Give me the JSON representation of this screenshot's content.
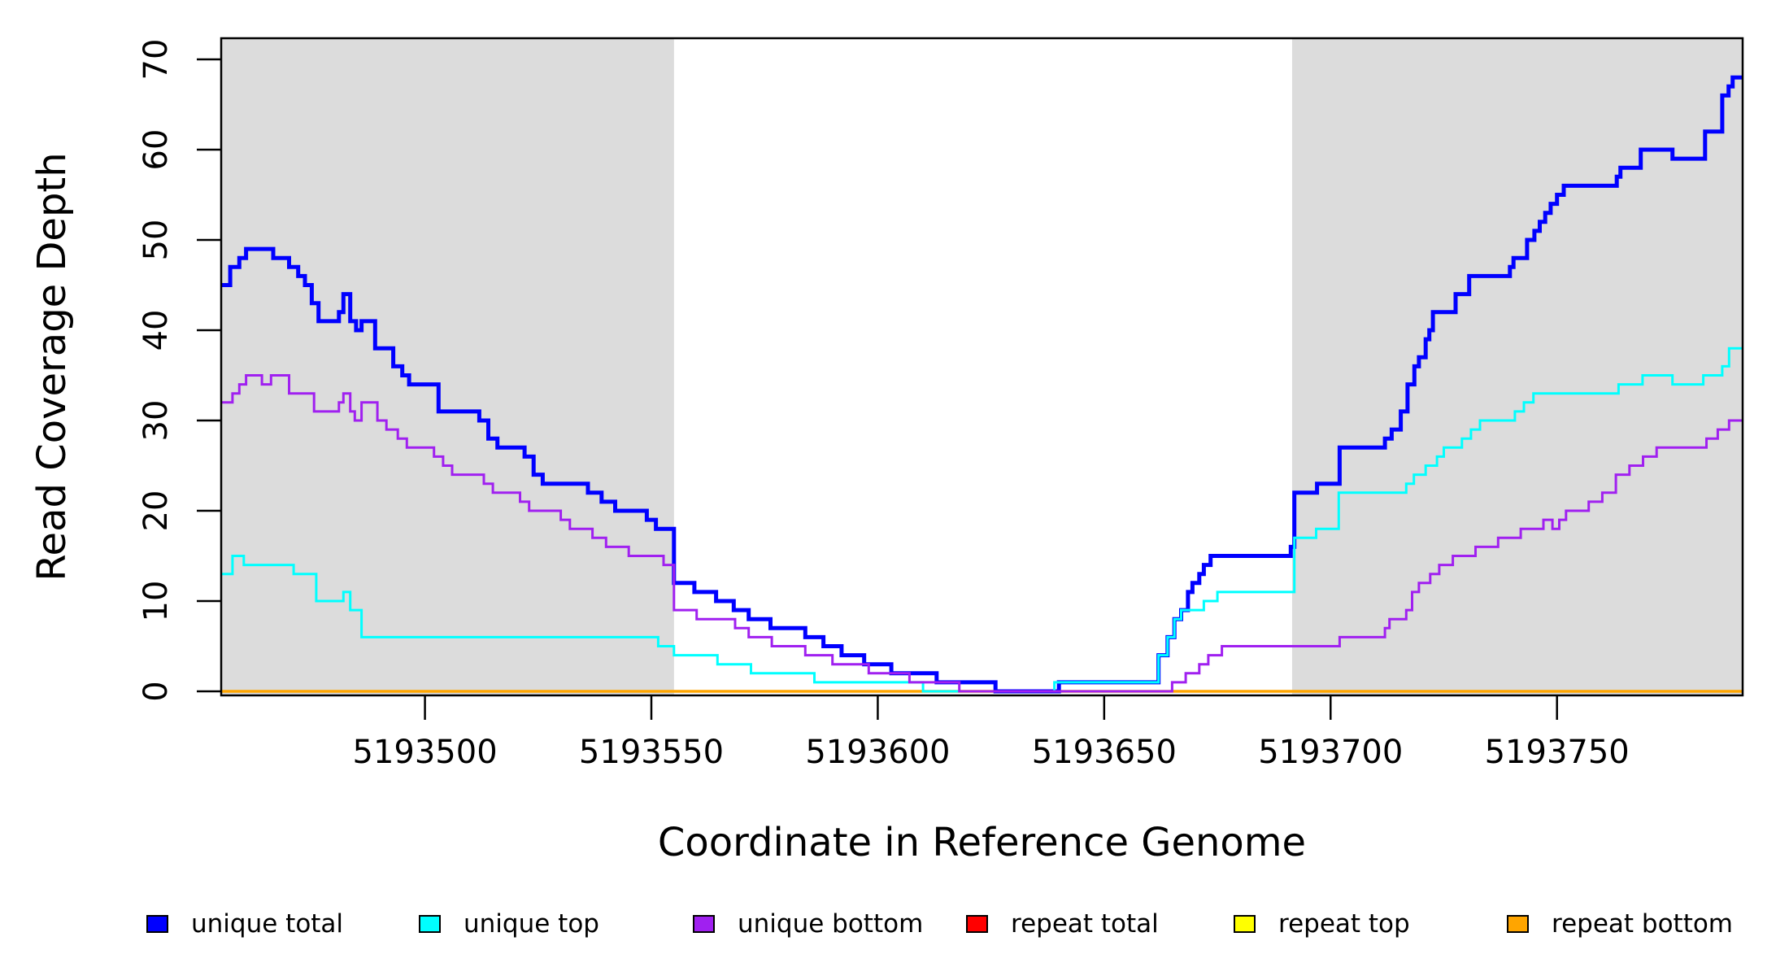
{
  "figure": {
    "background": "#FFFFFF",
    "plot_background": "#FFFFFF",
    "shade_color": "#DCDCDC",
    "axis_color": "#000000"
  },
  "chart_data": {
    "type": "line",
    "step_style": "after",
    "title": "",
    "xlabel": "Coordinate in Reference Genome",
    "ylabel": "Read Coverage Depth",
    "xlim": [
      5193455,
      5193791
    ],
    "ylim": [
      0,
      72
    ],
    "grid": false,
    "legend_position": "bottom",
    "x_ticks": [
      5193500,
      5193550,
      5193600,
      5193650,
      5193700,
      5193750
    ],
    "y_ticks": [
      0,
      10,
      20,
      30,
      40,
      50,
      60,
      70
    ],
    "shaded_regions": [
      {
        "from": 5193455,
        "to": 5193555
      },
      {
        "from": 5193691.5,
        "to": 5193791
      }
    ],
    "series": [
      {
        "name": "repeat total",
        "color": "#FF0000",
        "width": 2,
        "points": [
          [
            5193455,
            0
          ],
          [
            5193791,
            0
          ]
        ]
      },
      {
        "name": "repeat top",
        "color": "#FFFF00",
        "width": 2,
        "points": [
          [
            5193455,
            0
          ],
          [
            5193791,
            0
          ]
        ]
      },
      {
        "name": "repeat bottom",
        "color": "#FFA500",
        "width": 3.5,
        "points": [
          [
            5193455,
            0
          ],
          [
            5193791,
            0
          ]
        ]
      },
      {
        "name": "unique total",
        "color": "#0000FF",
        "width": 5,
        "points": [
          [
            5193455,
            45
          ],
          [
            5193457,
            47
          ],
          [
            5193459,
            48
          ],
          [
            5193460.5,
            49
          ],
          [
            5193466.5,
            48
          ],
          [
            5193470,
            47
          ],
          [
            5193472,
            46
          ],
          [
            5193473.5,
            45
          ],
          [
            5193475,
            43
          ],
          [
            5193476.5,
            41
          ],
          [
            5193481,
            42
          ],
          [
            5193482,
            44
          ],
          [
            5193483.5,
            41
          ],
          [
            5193484.8,
            40
          ],
          [
            5193486,
            41
          ],
          [
            5193489,
            38
          ],
          [
            5193493,
            36
          ],
          [
            5193495,
            35
          ],
          [
            5193496.5,
            34
          ],
          [
            5193503,
            31
          ],
          [
            5193512,
            30
          ],
          [
            5193514,
            28
          ],
          [
            5193516,
            27
          ],
          [
            5193522,
            26
          ],
          [
            5193524,
            24
          ],
          [
            5193526,
            23
          ],
          [
            5193536,
            22
          ],
          [
            5193539,
            21
          ],
          [
            5193542,
            20
          ],
          [
            5193549,
            19
          ],
          [
            5193551,
            18
          ],
          [
            5193555,
            12
          ],
          [
            5193559.5,
            11
          ],
          [
            5193564.3,
            10
          ],
          [
            5193568.2,
            9
          ],
          [
            5193571.5,
            8
          ],
          [
            5193576.3,
            7
          ],
          [
            5193584,
            6
          ],
          [
            5193588,
            5
          ],
          [
            5193592,
            4
          ],
          [
            5193597,
            3
          ],
          [
            5193603,
            2
          ],
          [
            5193613,
            1
          ],
          [
            5193626,
            0
          ],
          [
            5193640,
            1
          ],
          [
            5193662,
            4
          ],
          [
            5193664,
            6
          ],
          [
            5193665.5,
            8
          ],
          [
            5193667,
            9
          ],
          [
            5193668.5,
            11
          ],
          [
            5193669.5,
            12
          ],
          [
            5193671,
            13
          ],
          [
            5193672,
            14
          ],
          [
            5193673.5,
            15
          ],
          [
            5193691.2,
            16
          ],
          [
            5193692,
            22
          ],
          [
            5193697,
            23
          ],
          [
            5193702,
            27
          ],
          [
            5193712,
            28
          ],
          [
            5193713.5,
            29
          ],
          [
            5193715.5,
            31
          ],
          [
            5193717,
            34
          ],
          [
            5193718.5,
            36
          ],
          [
            5193719.5,
            37
          ],
          [
            5193721,
            39
          ],
          [
            5193721.8,
            40
          ],
          [
            5193722.6,
            42
          ],
          [
            5193727.6,
            44
          ],
          [
            5193730.6,
            46
          ],
          [
            5193739.6,
            47
          ],
          [
            5193740.4,
            48
          ],
          [
            5193743.4,
            50
          ],
          [
            5193745,
            51
          ],
          [
            5193746.2,
            52
          ],
          [
            5193747.4,
            53
          ],
          [
            5193748.6,
            54
          ],
          [
            5193750,
            55
          ],
          [
            5193751.5,
            56
          ],
          [
            5193763.2,
            57
          ],
          [
            5193764,
            58
          ],
          [
            5193768.5,
            60
          ],
          [
            5193775.5,
            59
          ],
          [
            5193782.7,
            62
          ],
          [
            5193786.5,
            66
          ],
          [
            5193787.9,
            67
          ],
          [
            5193788.8,
            68
          ],
          [
            5193791,
            68
          ]
        ]
      },
      {
        "name": "unique top",
        "color": "#00FFFF",
        "width": 3,
        "points": [
          [
            5193455,
            13
          ],
          [
            5193457.5,
            15
          ],
          [
            5193460,
            14
          ],
          [
            5193471,
            13
          ],
          [
            5193476,
            10
          ],
          [
            5193482,
            11
          ],
          [
            5193483.5,
            9
          ],
          [
            5193486,
            6
          ],
          [
            5193551.5,
            5
          ],
          [
            5193555,
            4
          ],
          [
            5193564.6,
            3
          ],
          [
            5193572,
            2
          ],
          [
            5193586,
            1
          ],
          [
            5193610,
            0
          ],
          [
            5193639,
            1
          ],
          [
            5193662,
            4
          ],
          [
            5193664,
            6
          ],
          [
            5193665.5,
            8
          ],
          [
            5193667,
            9
          ],
          [
            5193672,
            10
          ],
          [
            5193675,
            11
          ],
          [
            5193692,
            17
          ],
          [
            5193696.8,
            18
          ],
          [
            5193701.8,
            22
          ],
          [
            5193716.7,
            23
          ],
          [
            5193718.4,
            24
          ],
          [
            5193721,
            25
          ],
          [
            5193723.5,
            26
          ],
          [
            5193725,
            27
          ],
          [
            5193729,
            28
          ],
          [
            5193731,
            29
          ],
          [
            5193733,
            30
          ],
          [
            5193740.7,
            31
          ],
          [
            5193742.7,
            32
          ],
          [
            5193744.8,
            33
          ],
          [
            5193763.6,
            34
          ],
          [
            5193768.9,
            35
          ],
          [
            5193775.5,
            34
          ],
          [
            5193782.3,
            35
          ],
          [
            5193786.5,
            36
          ],
          [
            5193788,
            38
          ],
          [
            5193791,
            38
          ]
        ]
      },
      {
        "name": "unique bottom",
        "color": "#A020F0",
        "width": 3,
        "points": [
          [
            5193455,
            32
          ],
          [
            5193457.5,
            33
          ],
          [
            5193459,
            34
          ],
          [
            5193460.5,
            35
          ],
          [
            5193464,
            34
          ],
          [
            5193466,
            35
          ],
          [
            5193470,
            33
          ],
          [
            5193475.5,
            31
          ],
          [
            5193481,
            32
          ],
          [
            5193482,
            33
          ],
          [
            5193483.5,
            31
          ],
          [
            5193484.5,
            30
          ],
          [
            5193486,
            32
          ],
          [
            5193489.5,
            30
          ],
          [
            5193491.5,
            29
          ],
          [
            5193494,
            28
          ],
          [
            5193496,
            27
          ],
          [
            5193502,
            26
          ],
          [
            5193504,
            25
          ],
          [
            5193506,
            24
          ],
          [
            5193513,
            23
          ],
          [
            5193515,
            22
          ],
          [
            5193521,
            21
          ],
          [
            5193523,
            20
          ],
          [
            5193530,
            19
          ],
          [
            5193532,
            18
          ],
          [
            5193537,
            17
          ],
          [
            5193540,
            16
          ],
          [
            5193545,
            15
          ],
          [
            5193552.7,
            14
          ],
          [
            5193555,
            9
          ],
          [
            5193560,
            8
          ],
          [
            5193568.5,
            7
          ],
          [
            5193571.5,
            6
          ],
          [
            5193576.6,
            5
          ],
          [
            5193584,
            4
          ],
          [
            5193590,
            3
          ],
          [
            5193598,
            2
          ],
          [
            5193607,
            1
          ],
          [
            5193618,
            0
          ],
          [
            5193665,
            1
          ],
          [
            5193668,
            2
          ],
          [
            5193671,
            3
          ],
          [
            5193673,
            4
          ],
          [
            5193676,
            5
          ],
          [
            5193702,
            6
          ],
          [
            5193712,
            7
          ],
          [
            5193713,
            8
          ],
          [
            5193716.7,
            9
          ],
          [
            5193718,
            11
          ],
          [
            5193719.5,
            12
          ],
          [
            5193722,
            13
          ],
          [
            5193724,
            14
          ],
          [
            5193727,
            15
          ],
          [
            5193732,
            16
          ],
          [
            5193737,
            17
          ],
          [
            5193742,
            18
          ],
          [
            5193747,
            19
          ],
          [
            5193749,
            18
          ],
          [
            5193750.5,
            19
          ],
          [
            5193752,
            20
          ],
          [
            5193757,
            21
          ],
          [
            5193760,
            22
          ],
          [
            5193763,
            24
          ],
          [
            5193766,
            25
          ],
          [
            5193769,
            26
          ],
          [
            5193772,
            27
          ],
          [
            5193783,
            28
          ],
          [
            5193785.5,
            29
          ],
          [
            5193788,
            30
          ],
          [
            5193791,
            30
          ]
        ]
      }
    ]
  },
  "legend": {
    "items": [
      {
        "label": "unique total",
        "color": "#0000FF"
      },
      {
        "label": "unique top",
        "color": "#00FFFF"
      },
      {
        "label": "unique bottom",
        "color": "#A020F0"
      },
      {
        "label": "repeat total",
        "color": "#FF0000"
      },
      {
        "label": "repeat top",
        "color": "#FFFF00"
      },
      {
        "label": "repeat bottom",
        "color": "#FFA500"
      }
    ]
  }
}
